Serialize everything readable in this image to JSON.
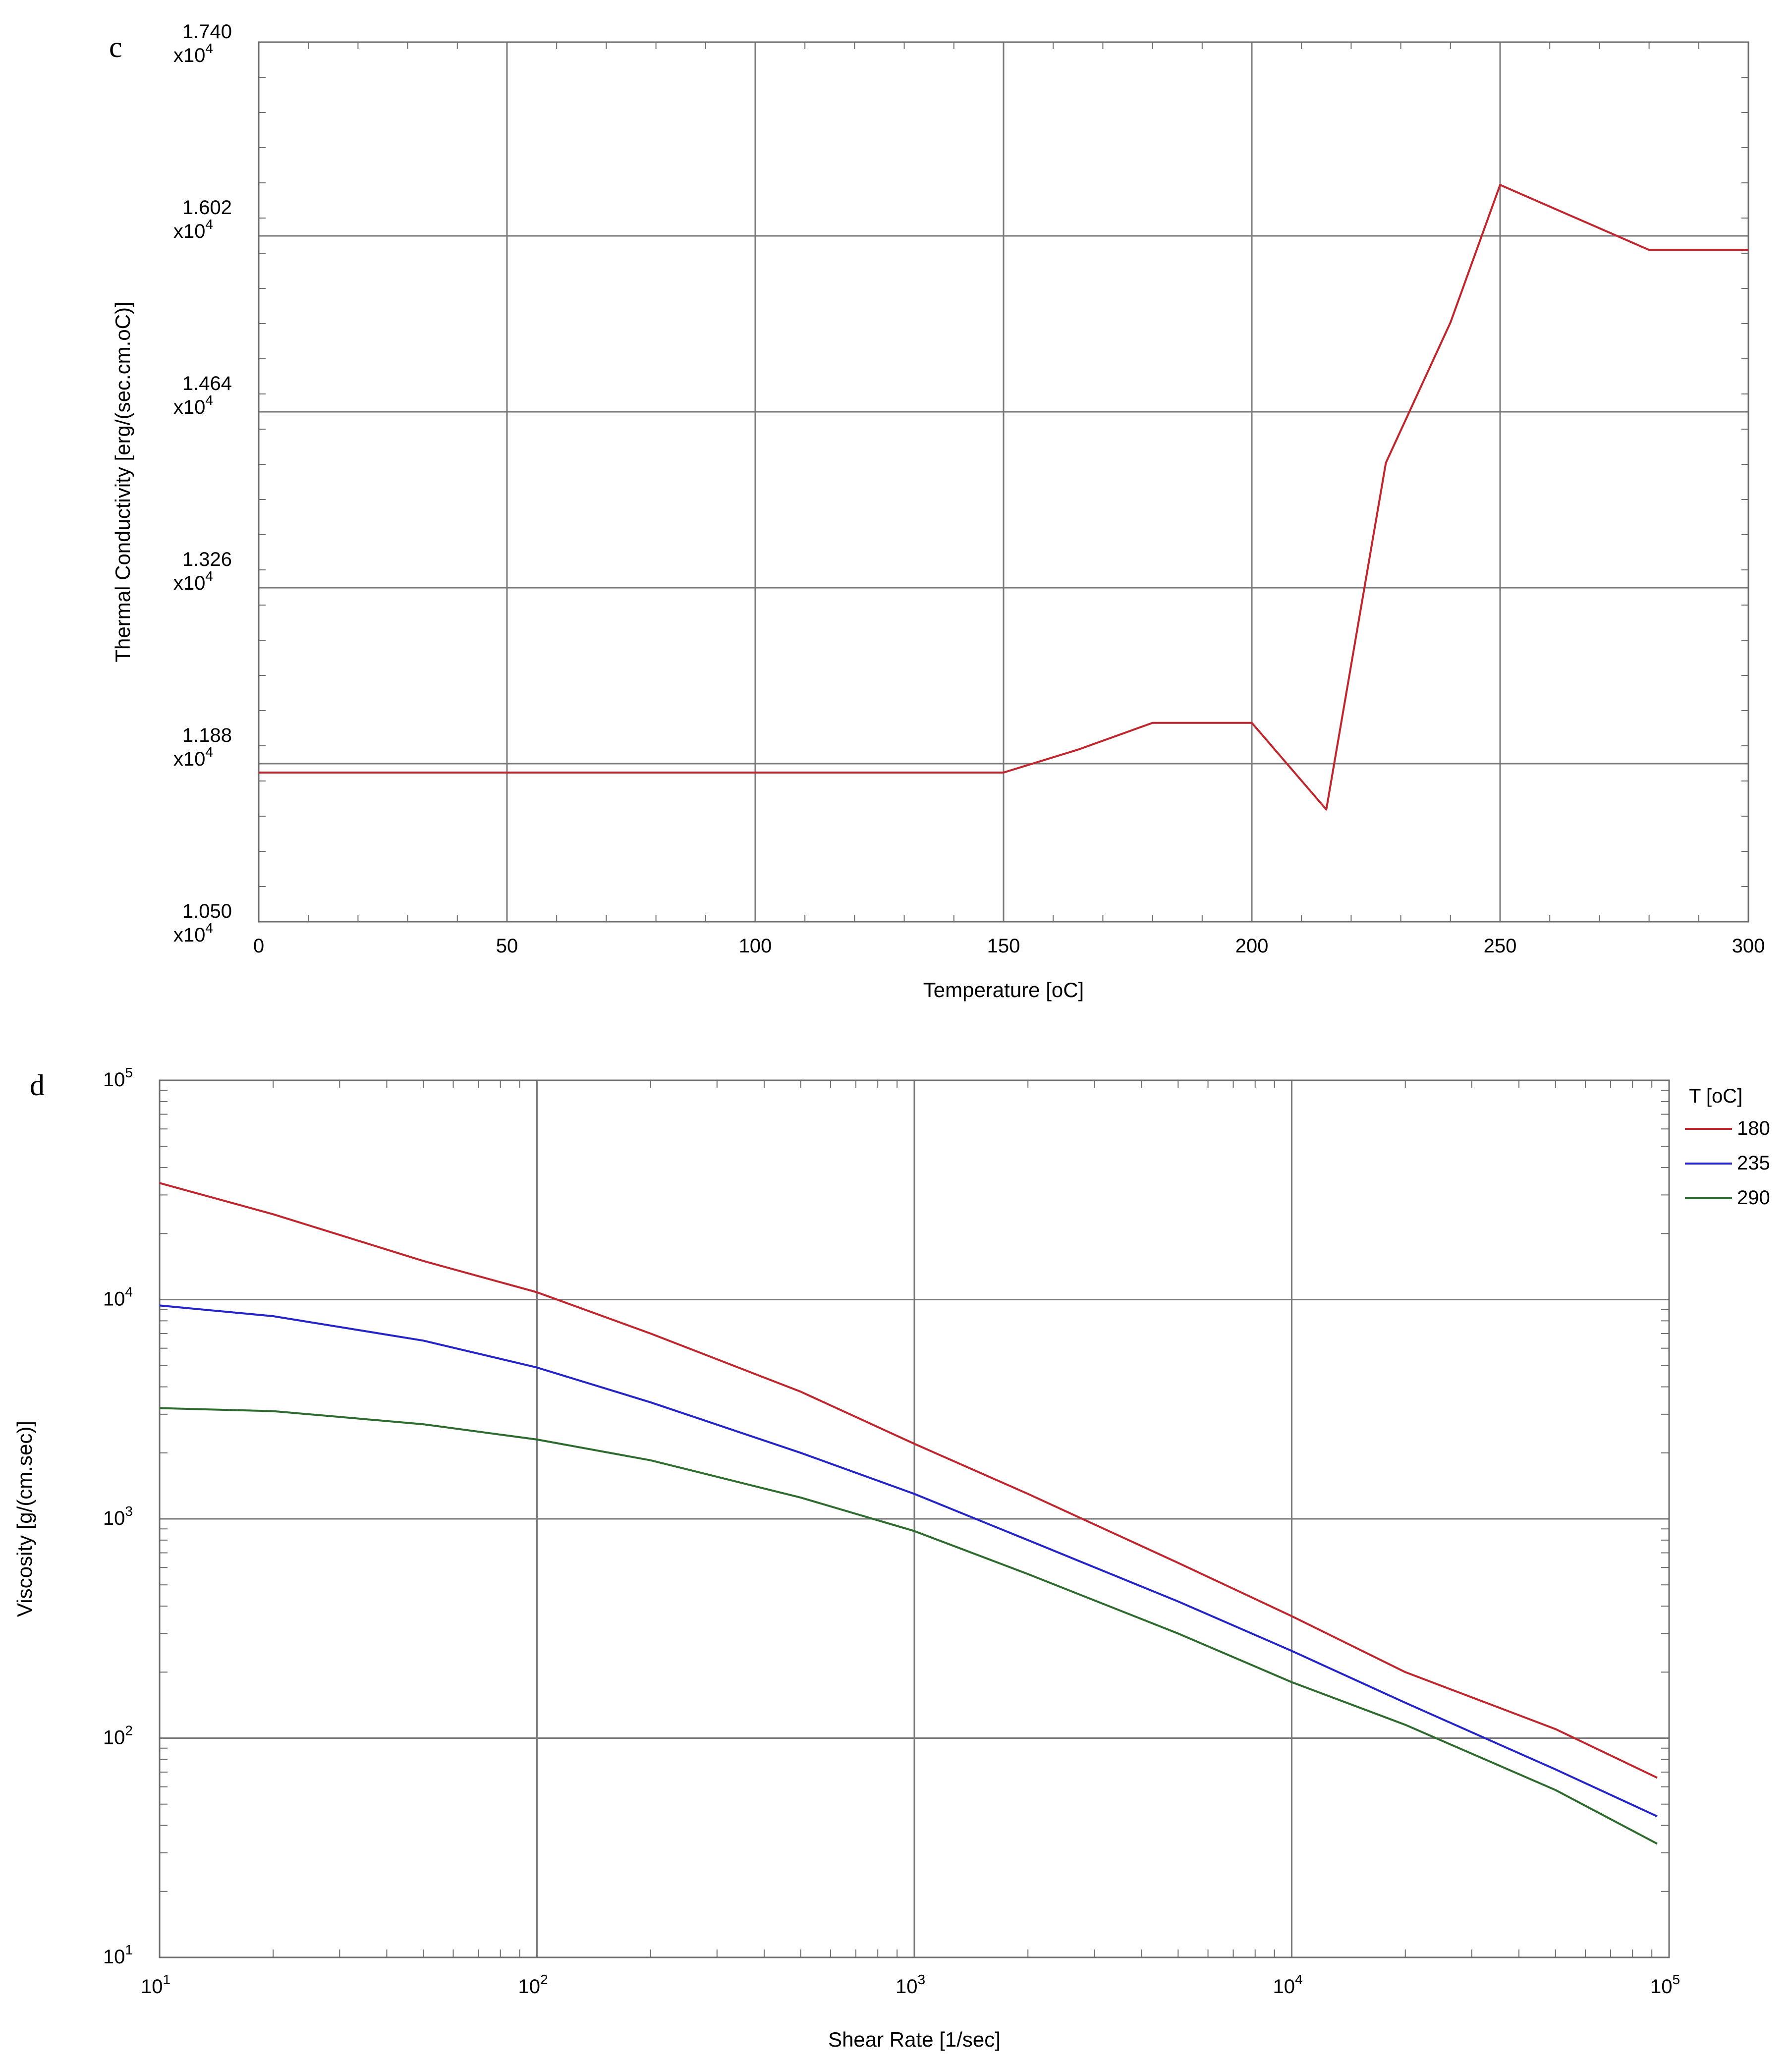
{
  "chart_data": [
    {
      "panel_label": "c",
      "type": "line",
      "xlabel": "Temperature [oC]",
      "ylabel": "Thermal Conductivity [erg/(sec.cm.oC)]",
      "xlim": [
        0,
        300
      ],
      "x_ticks": [
        0,
        50,
        100,
        150,
        200,
        250,
        300
      ],
      "x_tick_labels": [
        "0",
        "50",
        "100",
        "150",
        "200",
        "250",
        "300"
      ],
      "ylim": [
        1.05,
        1.74
      ],
      "y_ticks": [
        1.05,
        1.188,
        1.326,
        1.464,
        1.602,
        1.74
      ],
      "y_tick_labels": [
        "1.050",
        "1.188",
        "1.326",
        "1.464",
        "1.602",
        "1.740"
      ],
      "y_tick_exponent_label": "x10",
      "y_tick_exponent_power": "4",
      "h_grid_values": [
        1.174,
        1.312,
        1.45,
        1.588
      ],
      "grid": true,
      "series": [
        {
          "name": "Thermal Conductivity",
          "color": "#c0262d",
          "x": [
            0,
            150,
            165,
            180,
            200,
            215,
            227,
            240,
            250,
            280,
            300
          ],
          "y": [
            1.167,
            1.167,
            1.185,
            1.206,
            1.206,
            1.138,
            1.41,
            1.52,
            1.628,
            1.577,
            1.577
          ]
        }
      ]
    },
    {
      "panel_label": "d",
      "type": "line",
      "xscale": "log",
      "yscale": "log",
      "xlabel": "Shear Rate [1/sec]",
      "ylabel": "Viscosity [g/(cm.sec)]",
      "xlim": [
        10,
        100000
      ],
      "ylim": [
        10,
        100000
      ],
      "tick_base": "10",
      "x_tick_exponents": [
        "1",
        "2",
        "3",
        "4",
        "5"
      ],
      "y_tick_exponents": [
        "1",
        "2",
        "3",
        "4",
        "5"
      ],
      "grid": true,
      "legend_title": "T [oC]",
      "legend_position": "top-right outside",
      "series": [
        {
          "name": "180",
          "color": "#c0262d",
          "x": [
            10,
            20,
            50,
            100,
            200,
            500,
            1000,
            2000,
            5000,
            10000,
            20000,
            50000,
            93000
          ],
          "y": [
            34000,
            24500,
            15000,
            10800,
            7000,
            3800,
            2200,
            1300,
            630,
            360,
            200,
            110,
            66
          ]
        },
        {
          "name": "235",
          "color": "#2424c8",
          "x": [
            10,
            20,
            50,
            100,
            200,
            500,
            1000,
            2000,
            5000,
            10000,
            20000,
            50000,
            93000
          ],
          "y": [
            9400,
            8400,
            6500,
            4900,
            3400,
            2000,
            1300,
            800,
            420,
            250,
            145,
            72,
            44
          ]
        },
        {
          "name": "290",
          "color": "#2e6b2e",
          "x": [
            10,
            20,
            50,
            100,
            200,
            500,
            1000,
            2000,
            5000,
            10000,
            20000,
            50000,
            93000
          ],
          "y": [
            3200,
            3100,
            2700,
            2300,
            1850,
            1250,
            880,
            560,
            300,
            180,
            115,
            58,
            33
          ]
        }
      ]
    }
  ]
}
